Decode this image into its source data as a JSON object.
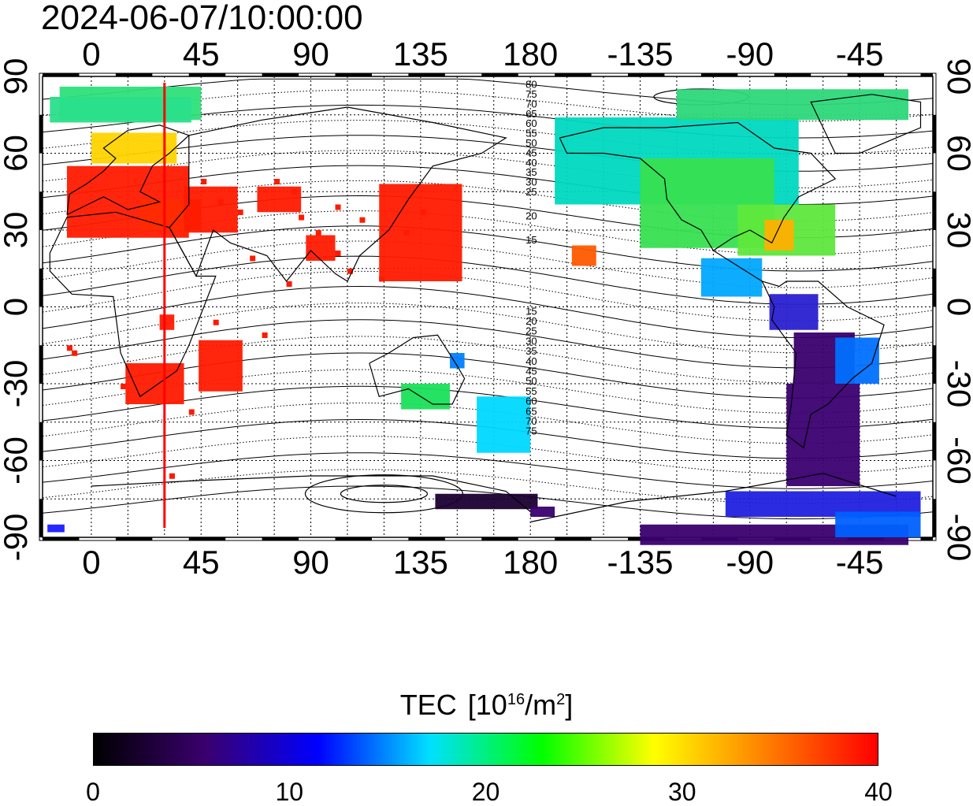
{
  "timestamp": "2024-06-07/10:00:00",
  "map": {
    "top_lon_labels": [
      "0",
      "45",
      "90",
      "135",
      "180",
      "-135",
      "-90",
      "-45"
    ],
    "bottom_lon_labels": [
      "0",
      "45",
      "90",
      "135",
      "180",
      "-135",
      "-90",
      "-45"
    ],
    "left_lat_labels": [
      "90",
      "60",
      "30",
      "0",
      "-30",
      "-60",
      "-90"
    ],
    "right_lat_labels": [
      "90",
      "60",
      "30",
      "0",
      "-30",
      "-60",
      "-90"
    ],
    "lon_ticks_deg": [
      0,
      45,
      90,
      135,
      180,
      225,
      270,
      315
    ],
    "lat_ticks_deg": [
      90,
      60,
      30,
      0,
      -30,
      -60,
      -90
    ],
    "lon_range": [
      -20,
      345
    ],
    "lat_range": [
      -90,
      90
    ],
    "red_line_lon": 30,
    "contour_labels_north": [
      "80",
      "75",
      "70",
      "65",
      "60",
      "55",
      "50",
      "45",
      "40",
      "35",
      "30",
      "25",
      "20",
      "15"
    ],
    "contour_labels_south": [
      "15",
      "20",
      "25",
      "30",
      "35",
      "40",
      "45",
      "50",
      "55",
      "60",
      "65",
      "70",
      "75"
    ],
    "colors": {
      "red_line": "#ff0000",
      "frame": "#000000"
    }
  },
  "colorbar": {
    "title_main": "TEC",
    "unit_prefix": "[10",
    "unit_exp": "16",
    "unit_mid": "/m",
    "unit_exp2": "2",
    "unit_suffix": "]",
    "tick_labels": [
      "0",
      "10",
      "20",
      "30",
      "40"
    ],
    "range": [
      0,
      40
    ],
    "colors": [
      "#000000",
      "#3a006e",
      "#0000ff",
      "#00e0ff",
      "#00ff00",
      "#ffff00",
      "#ff7f00",
      "#ff0000"
    ]
  }
}
